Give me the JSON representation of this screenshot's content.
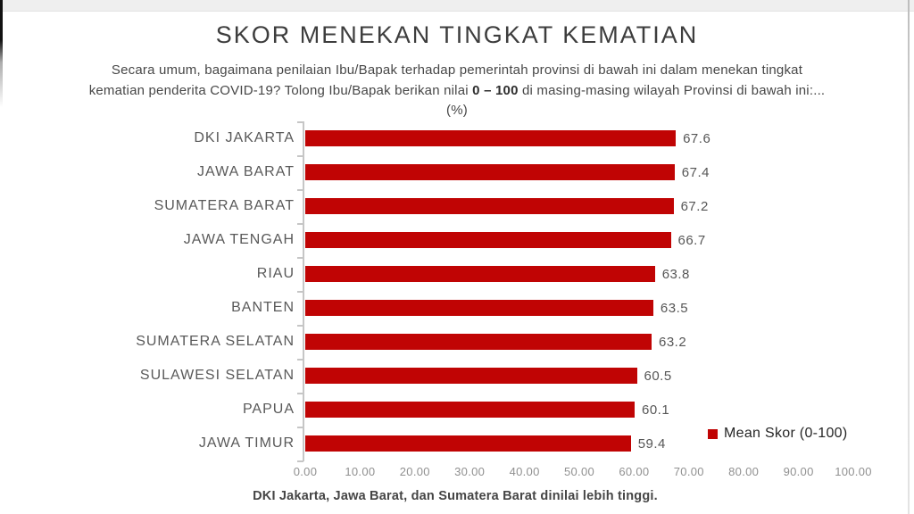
{
  "title": "SKOR MENEKAN TINGKAT KEMATIAN",
  "subtitle": {
    "pre": "Secara umum, bagaimana penilaian Ibu/Bapak terhadap pemerintah provinsi di bawah ini dalam menekan tingkat kematian penderita COVID-19? Tolong Ibu/Bapak berikan nilai ",
    "bold": "0 – 100",
    "post": " di masing-masing wilayah Provinsi di bawah ini:... (%)"
  },
  "chart_data": {
    "type": "bar",
    "orientation": "horizontal",
    "title": "SKOR MENEKAN TINGKAT KEMATIAN",
    "categories": [
      "DKI JAKARTA",
      "JAWA BARAT",
      "SUMATERA BARAT",
      "JAWA TENGAH",
      "RIAU",
      "BANTEN",
      "SUMATERA SELATAN",
      "SULAWESI SELATAN",
      "PAPUA",
      "JAWA TIMUR"
    ],
    "values": [
      67.6,
      67.4,
      67.2,
      66.7,
      63.8,
      63.5,
      63.2,
      60.5,
      60.1,
      59.4
    ],
    "value_labels": [
      "67.6",
      "67.4",
      "67.2",
      "66.7",
      "63.8",
      "63.5",
      "63.2",
      "60.5",
      "60.1",
      "59.4"
    ],
    "x_ticks": [
      "0.00",
      "10.00",
      "20.00",
      "30.00",
      "40.00",
      "50.00",
      "60.00",
      "70.00",
      "80.00",
      "90.00",
      "100.00"
    ],
    "xlim": [
      0,
      100
    ],
    "grid": false,
    "bar_color": "#C00404",
    "legend": {
      "label": "Mean Skor (0-100)",
      "color": "#C00404",
      "position": "bottom-right"
    }
  },
  "footer": "DKI Jakarta, Jawa Barat, dan Sumatera Barat dinilai lebih tinggi."
}
